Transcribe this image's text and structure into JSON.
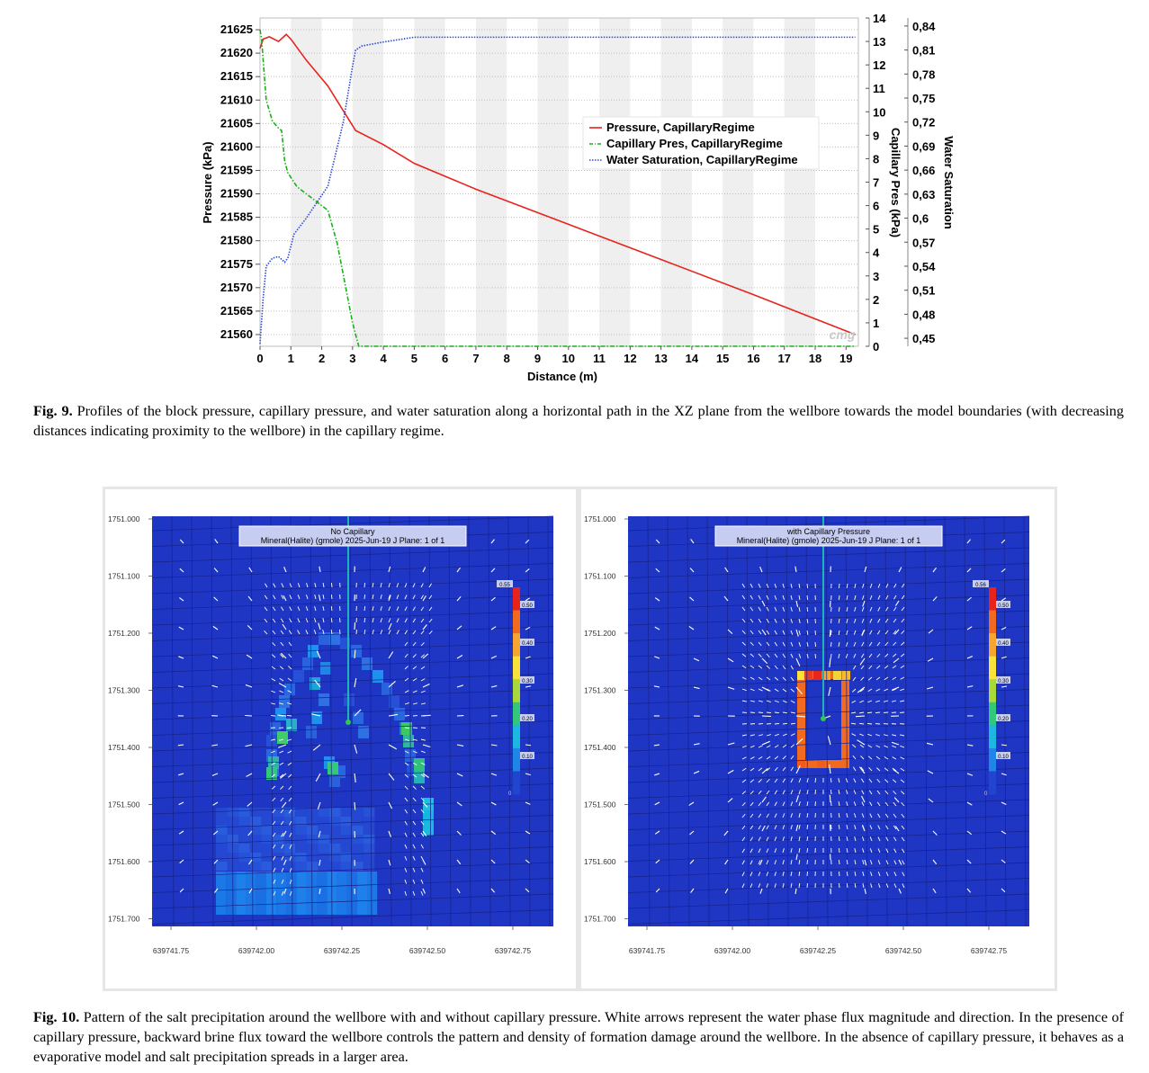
{
  "chart_data": [
    {
      "type": "line",
      "xlabel": "Distance (m)",
      "xlim": [
        0,
        19.4
      ],
      "xticks": [
        0,
        1,
        2,
        3,
        4,
        5,
        6,
        7,
        8,
        9,
        10,
        11,
        12,
        13,
        14,
        15,
        16,
        17,
        18,
        19
      ],
      "y_axes": [
        {
          "name": "pressure",
          "label": "Pressure (kPa)",
          "lim": [
            21557.5,
            21627.5
          ],
          "ticks": [
            21560,
            21565,
            21570,
            21575,
            21580,
            21585,
            21590,
            21595,
            21600,
            21605,
            21610,
            21615,
            21620,
            21625
          ]
        },
        {
          "name": "capillary",
          "label": "Capillary Pres (kPa)",
          "lim": [
            0,
            14
          ],
          "ticks": [
            0,
            1,
            2,
            3,
            4,
            5,
            6,
            7,
            8,
            9,
            10,
            11,
            12,
            13,
            14
          ]
        },
        {
          "name": "saturation",
          "label": "Water Saturation",
          "lim": [
            0.44,
            0.85
          ],
          "ticks": [
            "0,45",
            "0,48",
            "0,51",
            "0,54",
            "0,57",
            "0,6",
            "0,63",
            "0,66",
            "0,69",
            "0,72",
            "0,75",
            "0,78",
            "0,81",
            "0,84"
          ],
          "tick_values": [
            0.45,
            0.48,
            0.51,
            0.54,
            0.57,
            0.6,
            0.63,
            0.66,
            0.69,
            0.72,
            0.75,
            0.78,
            0.81,
            0.84
          ]
        }
      ],
      "grid": "alternating vertical bands",
      "legend_position": "center-right",
      "watermark": "cmg",
      "series": [
        {
          "name": "Pressure, CapillaryRegime",
          "axis": "pressure",
          "color": "#e8231c",
          "style": "solid",
          "x": [
            0,
            0.1,
            0.3,
            0.6,
            0.85,
            1,
            1.5,
            2.2,
            3.1,
            4,
            5,
            7,
            10,
            13,
            16,
            19.3
          ],
          "y": [
            21621,
            21623,
            21623.5,
            21622.5,
            21624,
            21623,
            21618.5,
            21613,
            21603.5,
            21600.5,
            21596.5,
            21591,
            21583.5,
            21576,
            21568.5,
            21560
          ]
        },
        {
          "name": "Capillary Pres, CapillaryRegime",
          "axis": "capillary",
          "color": "#19b019",
          "style": "dashdot",
          "x": [
            0,
            0.05,
            0.2,
            0.4,
            0.6,
            0.7,
            0.8,
            0.9,
            1.2,
            1.5,
            2.2,
            2.5,
            3,
            3.2,
            19.3
          ],
          "y": [
            13.5,
            13.1,
            10.5,
            9.6,
            9.3,
            9.2,
            7.9,
            7.4,
            6.8,
            6.5,
            5.8,
            4.4,
            1.0,
            0,
            0
          ]
        },
        {
          "name": "Water Saturation, CapillaryRegime",
          "axis": "saturation",
          "color": "#2b48d6",
          "style": "dotted",
          "x": [
            0,
            0.1,
            0.2,
            0.4,
            0.6,
            0.8,
            0.9,
            1.1,
            1.5,
            2.2,
            2.7,
            3,
            3.1,
            3.3,
            4,
            5,
            19.3
          ],
          "y": [
            0.443,
            0.5,
            0.54,
            0.55,
            0.552,
            0.545,
            0.55,
            0.58,
            0.6,
            0.64,
            0.72,
            0.79,
            0.81,
            0.815,
            0.82,
            0.826,
            0.826
          ]
        }
      ]
    },
    {
      "type": "heatmap",
      "title_line1": "No Capillary",
      "title_line2": "Mineral(Halite) (gmole) 2025-Jun-19  J Plane: 1 of 1",
      "yticks": [
        "1751.000",
        "1751.100",
        "1751.200",
        "1751.300",
        "1751.400",
        "1751.500",
        "1751.600",
        "1751.700"
      ],
      "xticks": [
        "639741.75",
        "639742.00",
        "639742.25",
        "639742.50",
        "639742.75"
      ],
      "colorbar": [
        "0.55",
        "0.50",
        "0.40",
        "0.30",
        "0.20",
        "0.10",
        "0"
      ]
    },
    {
      "type": "heatmap",
      "title_line1": "with Capillary Pressure",
      "title_line2": "Mineral(Halite) (gmole) 2025-Jun-19  J Plane: 1 of 1",
      "yticks": [
        "1751.000",
        "1751.100",
        "1751.200",
        "1751.300",
        "1751.400",
        "1751.500",
        "1751.600",
        "1751.700"
      ],
      "xticks": [
        "639741.75",
        "639742.00",
        "639742.25",
        "639742.50",
        "639742.75"
      ],
      "colorbar": [
        "0.56",
        "0.50",
        "0.40",
        "0.30",
        "0.20",
        "0.10",
        "0"
      ]
    }
  ],
  "fig9": {
    "label": "Fig. 9.",
    "text": "Profiles of the block pressure, capillary pressure, and water saturation along a horizontal path in the XZ plane from the wellbore towards the model boundaries (with decreasing distances indicating proximity to the wellbore) in the capillary regime."
  },
  "fig10": {
    "label": "Fig. 10.",
    "text": "Pattern of the salt precipitation around the wellbore with and without capillary pressure. White arrows represent the water phase flux magnitude and direction. In the presence of capillary pressure, backward brine flux toward the wellbore controls the pattern and density of formation damage around the wellbore. In the absence of capillary pressure, it behaves as a evaporative model and salt precipitation spreads in a larger area."
  },
  "colors": {
    "field_blue": "#1f35c4",
    "frame_gray": "#e6e6e6"
  }
}
